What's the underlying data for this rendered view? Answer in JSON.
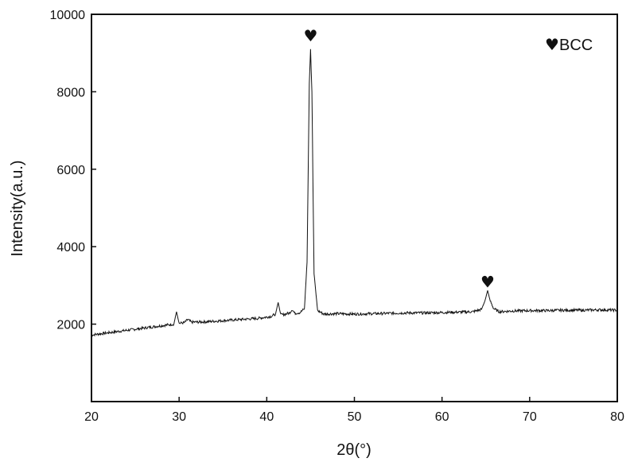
{
  "chart_data": {
    "type": "line",
    "title": "",
    "xlabel": "2θ(°)",
    "ylabel": "Intensity(a.u.)",
    "xlim": [
      20,
      80
    ],
    "ylim": [
      0,
      10000
    ],
    "xticks": [
      20,
      30,
      40,
      50,
      60,
      70,
      80
    ],
    "yticks": [
      2000,
      4000,
      6000,
      8000,
      10000
    ],
    "grid": false,
    "legend": {
      "position": "top-right",
      "symbol": "♥",
      "label": "BCC"
    },
    "series": [
      {
        "x": [
          20,
          22,
          24,
          26,
          28,
          29.4,
          29.7,
          30.0,
          30.6,
          31.0,
          31.4,
          33,
          35,
          37,
          39,
          40.5,
          41.0,
          41.3,
          41.6,
          42.0,
          42.6,
          42.9,
          43.2,
          43.8,
          44.3,
          44.6,
          44.85,
          45.0,
          45.15,
          45.4,
          45.8,
          46.5,
          48,
          50,
          52,
          54,
          56,
          58,
          60,
          62,
          63.5,
          64.5,
          64.9,
          65.2,
          65.5,
          65.9,
          66.5,
          68,
          70,
          72,
          74,
          76,
          78,
          80
        ],
        "y": [
          1720,
          1780,
          1840,
          1900,
          1960,
          2000,
          2320,
          2020,
          2040,
          2120,
          2050,
          2060,
          2090,
          2120,
          2150,
          2200,
          2260,
          2560,
          2240,
          2250,
          2290,
          2380,
          2280,
          2300,
          2400,
          3600,
          8200,
          9100,
          8000,
          3300,
          2350,
          2260,
          2270,
          2260,
          2270,
          2280,
          2290,
          2290,
          2300,
          2310,
          2320,
          2380,
          2600,
          2870,
          2600,
          2400,
          2320,
          2340,
          2350,
          2350,
          2360,
          2360,
          2370,
          2360
        ]
      }
    ],
    "annotations": [
      {
        "symbol": "♥",
        "x": 45.0,
        "y": 9300
      },
      {
        "symbol": "♥",
        "x": 65.2,
        "y": 2950
      }
    ]
  }
}
